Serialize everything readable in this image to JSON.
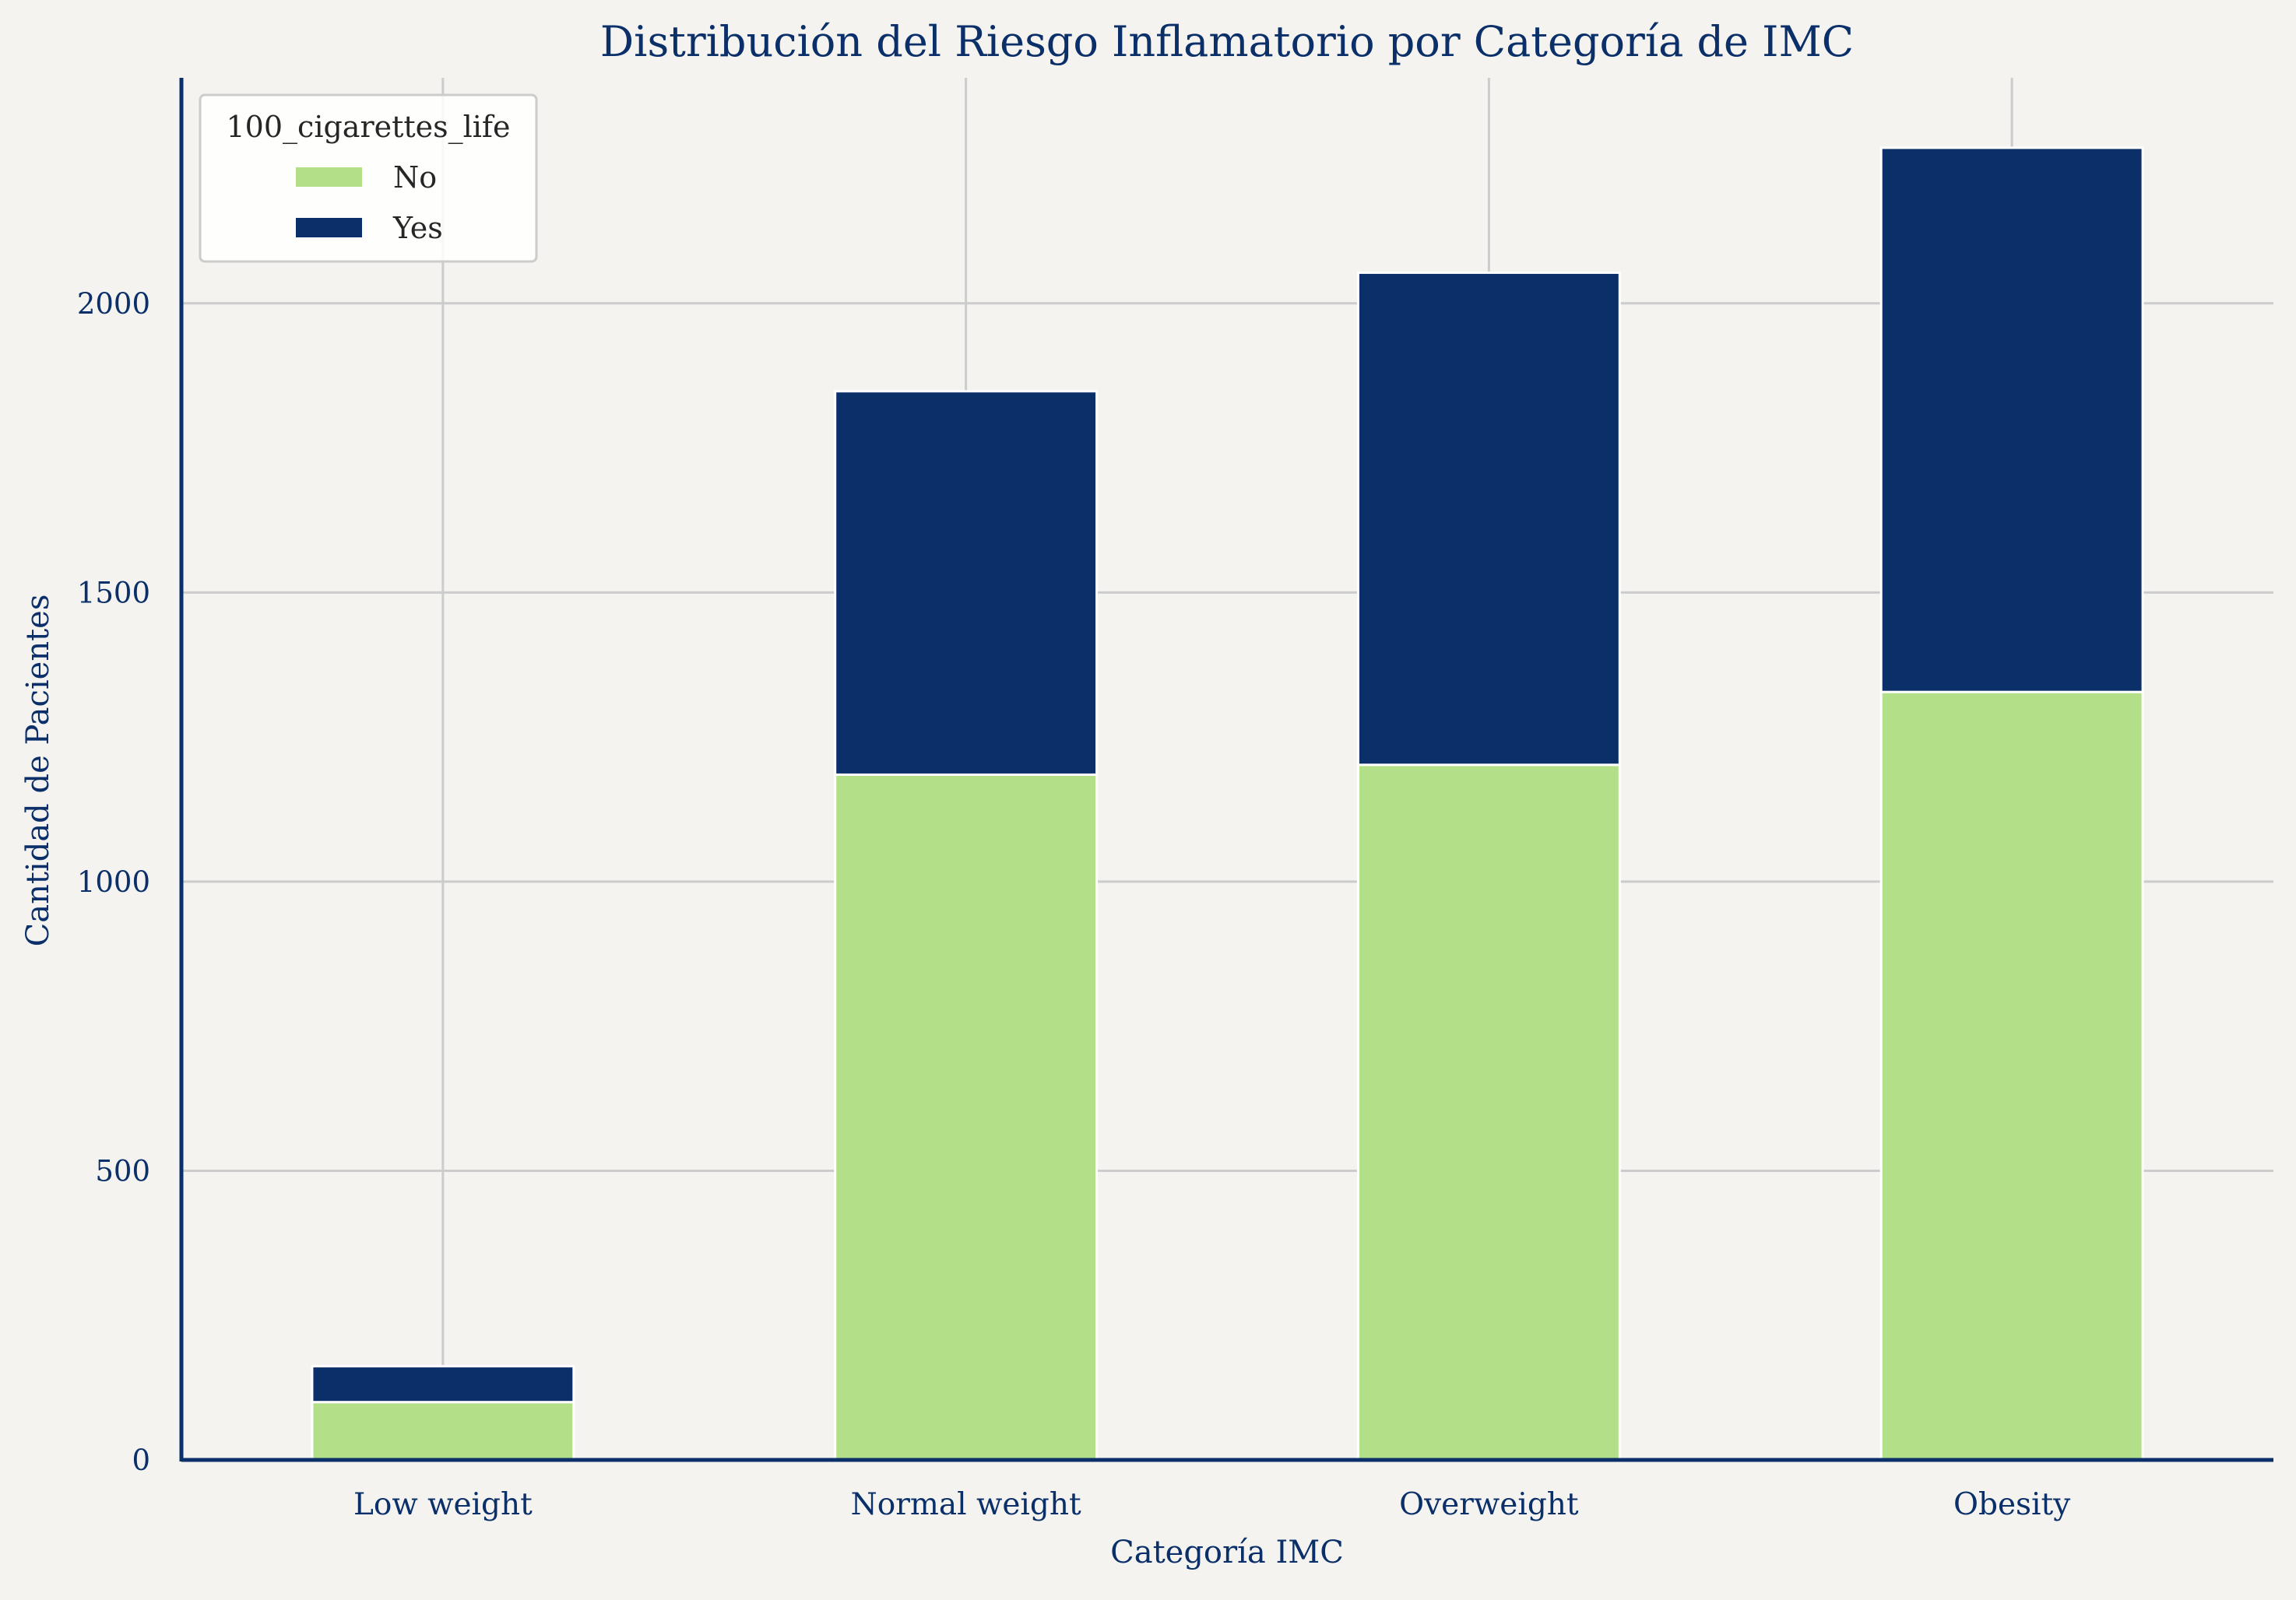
{
  "chart_data": {
    "type": "bar",
    "stacked": true,
    "title": "Distribución del Riesgo Inflamatorio por Categoría de IMC",
    "xlabel": "Categoría IMC",
    "ylabel": "Cantidad de Pacientes",
    "categories": [
      "Low weight",
      "Normal weight",
      "Overweight",
      "Obesity"
    ],
    "series": [
      {
        "name": "No",
        "color": "#b3df89",
        "values": [
          100,
          1185,
          1202,
          1328
        ]
      },
      {
        "name": "Yes",
        "color": "#0a2f69",
        "values": [
          62,
          663,
          851,
          941
        ]
      }
    ],
    "ylim": [
      0,
      2390
    ],
    "yticks": [
      0,
      500,
      1000,
      1500,
      2000
    ],
    "grid": true,
    "legend": {
      "title": "100_cigarettes_life",
      "position": "top-left"
    },
    "colors": {
      "background": "#f4f3f0",
      "text": "#0a2f69",
      "grid": "#cccccc",
      "axis": "#0a2f69",
      "bar_edge": "#ffffff"
    }
  }
}
